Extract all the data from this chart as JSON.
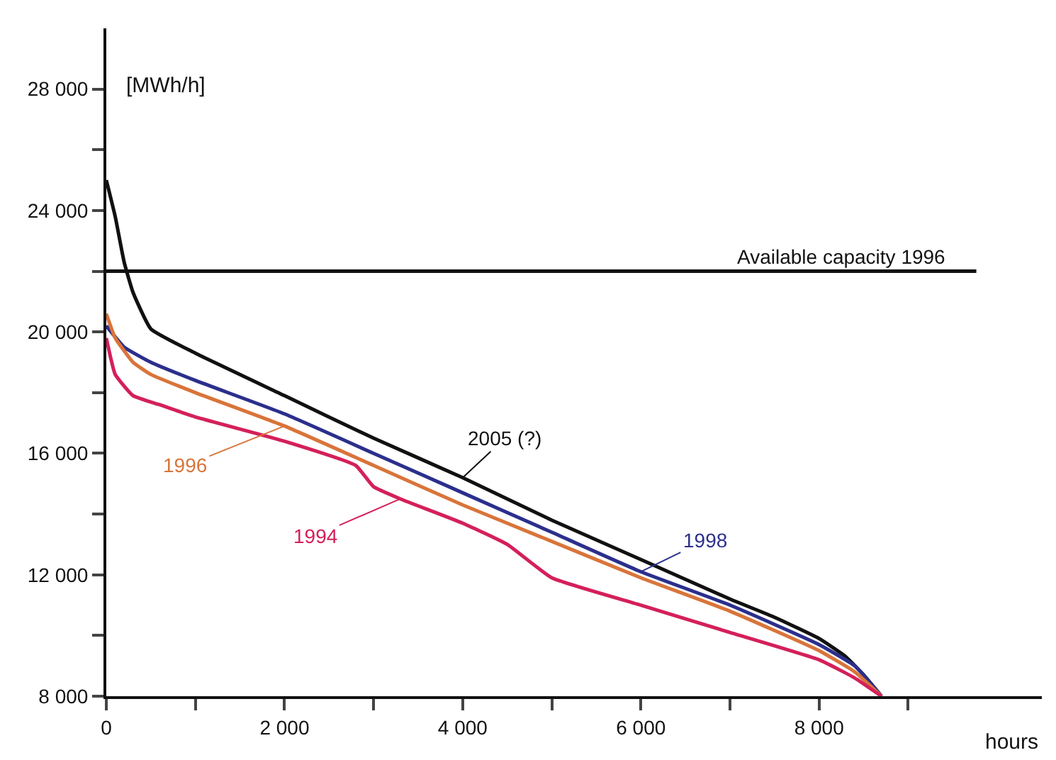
{
  "chart_data": {
    "type": "line",
    "ylabel": "[MWh/h]",
    "xlabel": "hours",
    "xlim": [
      0,
      10500
    ],
    "ylim": [
      8000,
      30000
    ],
    "xticks": [
      {
        "value": 0,
        "label": "0"
      },
      {
        "value": 1000,
        "label": null
      },
      {
        "value": 2000,
        "label": "2 000"
      },
      {
        "value": 3000,
        "label": null
      },
      {
        "value": 4000,
        "label": "4 000"
      },
      {
        "value": 5000,
        "label": null
      },
      {
        "value": 6000,
        "label": "6 000"
      },
      {
        "value": 7000,
        "label": null
      },
      {
        "value": 8000,
        "label": "8 000"
      },
      {
        "value": 9000,
        "label": null
      }
    ],
    "yticks": [
      {
        "value": 8000,
        "label": "8 000"
      },
      {
        "value": 10000,
        "label": null
      },
      {
        "value": 12000,
        "label": "12 000"
      },
      {
        "value": 14000,
        "label": null
      },
      {
        "value": 16000,
        "label": "16 000"
      },
      {
        "value": 18000,
        "label": null
      },
      {
        "value": 20000,
        "label": "20 000"
      },
      {
        "value": 22000,
        "label": null
      },
      {
        "value": 24000,
        "label": "24 000"
      },
      {
        "value": 26000,
        "label": null
      },
      {
        "value": 28000,
        "label": "28 000"
      }
    ],
    "legend": false,
    "marker": "none",
    "line_style": "solid",
    "ref_lines": [
      {
        "axis": "y",
        "value": 22000,
        "label": "Available capacity 1996",
        "color": "#111111"
      }
    ],
    "series": [
      {
        "name": "2005 (?)",
        "color": "#111111",
        "x": [
          0,
          100,
          200,
          300,
          500,
          1000,
          2000,
          3000,
          4000,
          5000,
          6000,
          7000,
          7500,
          8000,
          8300,
          8500,
          8700
        ],
        "values": [
          25000,
          23800,
          22300,
          21300,
          20100,
          19300,
          17900,
          16500,
          15200,
          13800,
          12500,
          11200,
          10600,
          9900,
          9300,
          8700,
          8000
        ]
      },
      {
        "name": "1998",
        "color": "#2b2f8c",
        "x": [
          0,
          200,
          500,
          1000,
          2000,
          3000,
          4000,
          5000,
          6000,
          7000,
          8000,
          8400,
          8700
        ],
        "values": [
          20200,
          19500,
          19000,
          18400,
          17300,
          16000,
          14700,
          13400,
          12100,
          11000,
          9700,
          9000,
          8000
        ]
      },
      {
        "name": "1996",
        "color": "#d9743a",
        "x": [
          0,
          100,
          300,
          500,
          1000,
          2000,
          3000,
          4000,
          5000,
          6000,
          7000,
          8000,
          8400,
          8700
        ],
        "values": [
          20600,
          19800,
          19000,
          18600,
          18000,
          16900,
          15600,
          14300,
          13100,
          11900,
          10800,
          9500,
          8800,
          8000
        ]
      },
      {
        "name": "1994",
        "color": "#d4205a",
        "x": [
          0,
          100,
          300,
          600,
          1000,
          2000,
          2800,
          3000,
          3300,
          4000,
          4500,
          5000,
          6000,
          7000,
          8000,
          8400,
          8700
        ],
        "values": [
          19800,
          18600,
          17900,
          17600,
          17200,
          16400,
          15600,
          14900,
          14500,
          13700,
          13000,
          11900,
          11000,
          10100,
          9200,
          8600,
          8000
        ]
      }
    ]
  }
}
